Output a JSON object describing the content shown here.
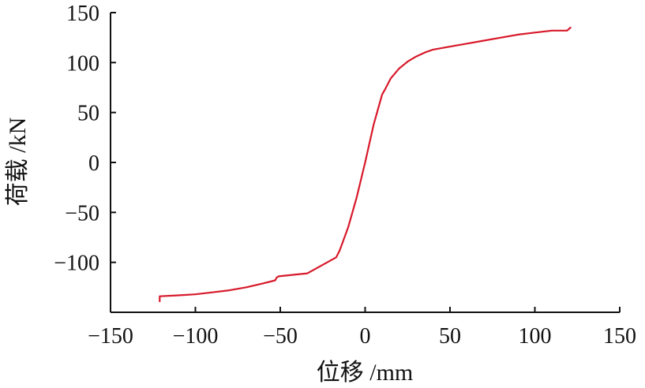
{
  "chart_data": {
    "type": "line",
    "xlabel": "位移 /mm",
    "ylabel": "荷载 /kN",
    "xlim": [
      -150,
      150
    ],
    "ylim": [
      -150,
      150
    ],
    "xticks": [
      -150,
      -100,
      -50,
      0,
      50,
      100,
      150
    ],
    "yticks": [
      -100,
      -50,
      0,
      50,
      100,
      150
    ],
    "xtick_labels": [
      "−150",
      "−100",
      "−50",
      "0",
      "50",
      "100",
      "150"
    ],
    "ytick_labels": [
      "−100",
      "−50",
      "0",
      "50",
      "100",
      "150"
    ],
    "grid": false,
    "series": [
      {
        "color": "#d7192a",
        "x": [
          -121,
          -121,
          -110,
          -100,
          -90,
          -80,
          -70,
          -60,
          -53,
          -52,
          -51,
          -34,
          -17,
          -15,
          -10,
          -5,
          0,
          5,
          10,
          12,
          15,
          20,
          25,
          30,
          35,
          40,
          50,
          60,
          70,
          80,
          90,
          100,
          110,
          119,
          121
        ],
        "y": [
          -139,
          -134,
          -133,
          -132,
          -130,
          -128,
          -125,
          -121,
          -118,
          -115,
          -114,
          -111,
          -95,
          -88,
          -65,
          -35,
          0,
          38,
          68,
          74,
          84,
          94,
          101,
          106,
          110,
          113,
          116,
          119,
          122,
          125,
          128,
          130,
          132,
          132,
          135
        ]
      }
    ]
  }
}
